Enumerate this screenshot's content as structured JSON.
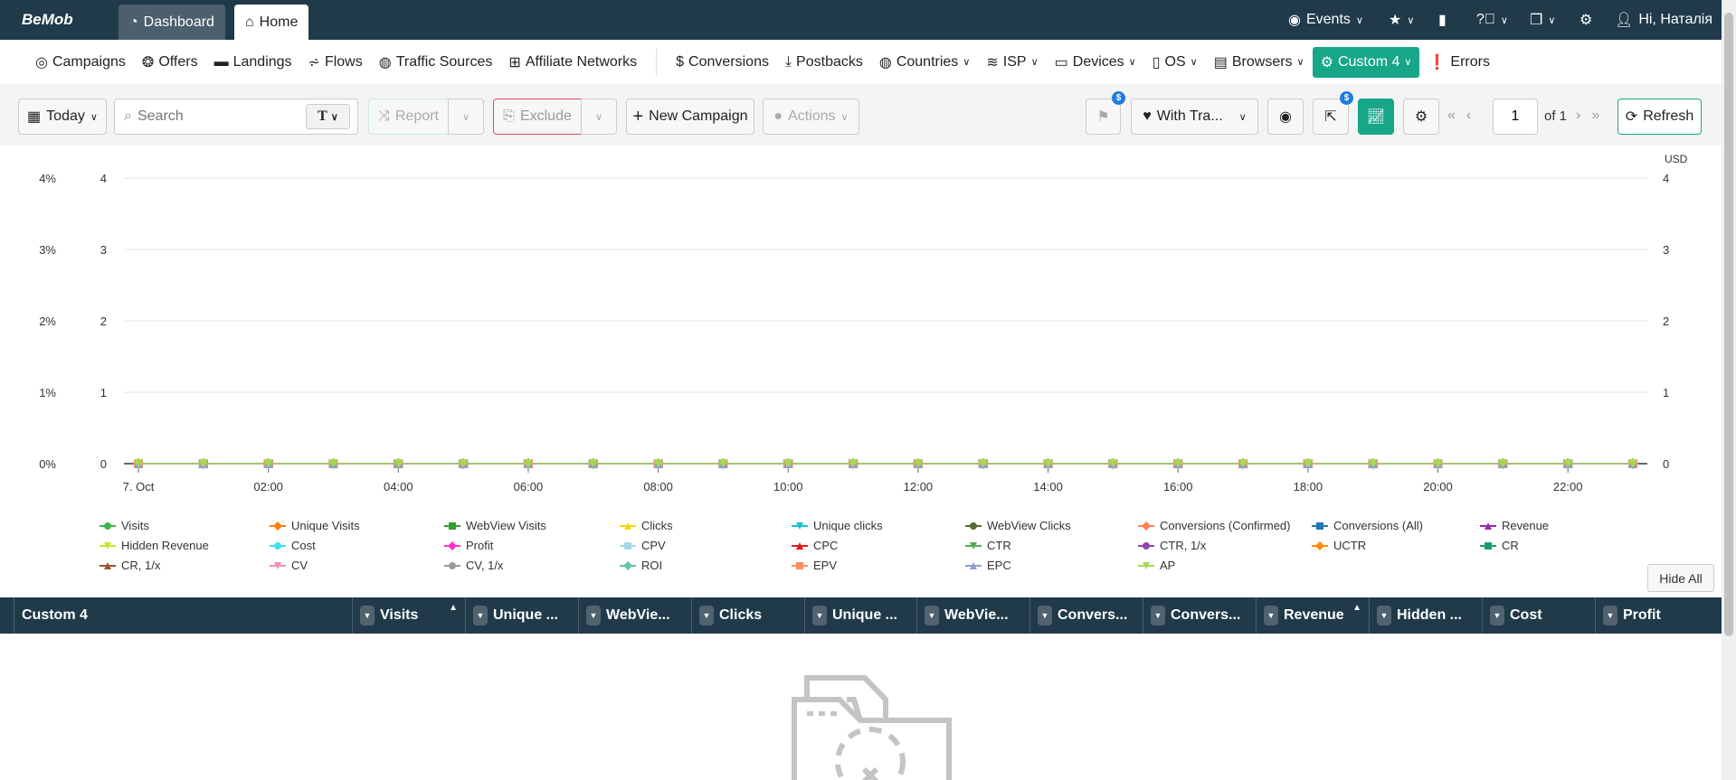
{
  "topbar": {
    "logo": "BeMob",
    "tabs": [
      {
        "label": "Dashboard",
        "icon": "dashboard-icon"
      },
      {
        "label": "Home",
        "icon": "home-icon"
      }
    ],
    "events": "Events",
    "user": "Hi, Наталія"
  },
  "nav": {
    "items": [
      {
        "label": "Campaigns",
        "icon": "target-icon"
      },
      {
        "label": "Offers",
        "icon": "dollar-badge-icon"
      },
      {
        "label": "Landings",
        "icon": "page-icon"
      },
      {
        "label": "Flows",
        "icon": "sitemap-icon"
      },
      {
        "label": "Traffic Sources",
        "icon": "globe-icon"
      },
      {
        "label": "Affiliate Networks",
        "icon": "network-icon"
      },
      {
        "label": "Conversions",
        "icon": "dollar-icon",
        "sep": true
      },
      {
        "label": "Postbacks",
        "icon": "download-icon"
      },
      {
        "label": "Countries",
        "icon": "globe-icon",
        "dropdown": true
      },
      {
        "label": "ISP",
        "icon": "wifi-icon",
        "dropdown": true
      },
      {
        "label": "Devices",
        "icon": "laptop-icon",
        "dropdown": true
      },
      {
        "label": "OS",
        "icon": "mobile-icon",
        "dropdown": true
      },
      {
        "label": "Browsers",
        "icon": "browser-icon",
        "dropdown": true
      },
      {
        "label": "Custom 4",
        "icon": "cogs-icon",
        "dropdown": true,
        "active": true
      },
      {
        "label": "Errors",
        "icon": "exclamation-icon"
      }
    ]
  },
  "toolbar": {
    "date": "Today",
    "search_placeholder": "Search",
    "search_type": "T",
    "report": "Report",
    "exclude": "Exclude",
    "new_campaign": "New Campaign",
    "actions": "Actions",
    "traffic_filter": "With Tra...",
    "badge": "$",
    "page": "1",
    "page_of": "of 1",
    "refresh": "Refresh"
  },
  "chart_data": {
    "type": "line",
    "x": [
      "00:00",
      "01:00",
      "02:00",
      "03:00",
      "04:00",
      "05:00",
      "06:00",
      "07:00",
      "08:00",
      "09:00",
      "10:00",
      "11:00",
      "12:00",
      "13:00",
      "14:00",
      "15:00",
      "16:00",
      "17:00",
      "18:00",
      "19:00",
      "20:00",
      "21:00",
      "22:00",
      "23:00"
    ],
    "x_tick_labels": [
      "7. Oct",
      "02:00",
      "04:00",
      "06:00",
      "08:00",
      "10:00",
      "12:00",
      "14:00",
      "16:00",
      "18:00",
      "20:00",
      "22:00"
    ],
    "y_left_percent_ticks": [
      "0%",
      "1%",
      "2%",
      "3%",
      "4%"
    ],
    "y_left_ticks": [
      "0",
      "1",
      "2",
      "3",
      "4"
    ],
    "y_right_ticks": [
      "0",
      "1",
      "2",
      "3",
      "4"
    ],
    "y_right_label": "USD",
    "ylim": [
      0,
      4
    ],
    "grid": true,
    "legend_placement": "bottom",
    "series": [
      {
        "name": "Visits",
        "color": "#3cb44b",
        "marker": "circle"
      },
      {
        "name": "Unique Visits",
        "color": "#ff7f0e",
        "marker": "diamond"
      },
      {
        "name": "WebView Visits",
        "color": "#2ca02c",
        "marker": "square"
      },
      {
        "name": "Clicks",
        "color": "#f5d90a",
        "marker": "triangle"
      },
      {
        "name": "Unique clicks",
        "color": "#17becf",
        "marker": "triangle-down"
      },
      {
        "name": "WebView Clicks",
        "color": "#556b2f",
        "marker": "circle"
      },
      {
        "name": "Conversions (Confirmed)",
        "color": "#ff7f50",
        "marker": "diamond"
      },
      {
        "name": "Conversions (All)",
        "color": "#1f77b4",
        "marker": "square"
      },
      {
        "name": "Revenue",
        "color": "#9c27b0",
        "marker": "triangle"
      },
      {
        "name": "Hidden Revenue",
        "color": "#c6e82b",
        "marker": "triangle-down"
      },
      {
        "name": "Cost",
        "color": "#40e0f0",
        "marker": "circle"
      },
      {
        "name": "Profit",
        "color": "#ff33cc",
        "marker": "diamond"
      },
      {
        "name": "CPV",
        "color": "#a6d8e8",
        "marker": "square"
      },
      {
        "name": "CPC",
        "color": "#e31a1c",
        "marker": "triangle"
      },
      {
        "name": "CTR",
        "color": "#4caf50",
        "marker": "triangle-down"
      },
      {
        "name": "CTR, 1/x",
        "color": "#8e44ad",
        "marker": "circle"
      },
      {
        "name": "UCTR",
        "color": "#ff8c00",
        "marker": "diamond"
      },
      {
        "name": "CR",
        "color": "#1a9b7a",
        "marker": "square"
      },
      {
        "name": "CR, 1/x",
        "color": "#a0522d",
        "marker": "triangle"
      },
      {
        "name": "CV",
        "color": "#f48fb1",
        "marker": "triangle-down"
      },
      {
        "name": "CV, 1/x",
        "color": "#999999",
        "marker": "circle"
      },
      {
        "name": "ROI",
        "color": "#66c2a5",
        "marker": "diamond"
      },
      {
        "name": "EPV",
        "color": "#fc8d62",
        "marker": "square"
      },
      {
        "name": "EPC",
        "color": "#8da0cb",
        "marker": "triangle"
      },
      {
        "name": "AP",
        "color": "#a6d854",
        "marker": "triangle-down"
      }
    ],
    "values_all_series": [
      0,
      0,
      0,
      0,
      0,
      0,
      0,
      0,
      0,
      0,
      0,
      0,
      0,
      0,
      0,
      0,
      0,
      0,
      0,
      0,
      0,
      0,
      0,
      0
    ]
  },
  "hide_all": "Hide All",
  "table": {
    "columns": [
      {
        "label": "Custom 4"
      },
      {
        "label": "Visits",
        "sort": "asc"
      },
      {
        "label": "Unique ..."
      },
      {
        "label": "WebVie..."
      },
      {
        "label": "Clicks"
      },
      {
        "label": "Unique ..."
      },
      {
        "label": "WebVie..."
      },
      {
        "label": "Convers..."
      },
      {
        "label": "Convers..."
      },
      {
        "label": "Revenue",
        "sort": "asc"
      },
      {
        "label": "Hidden ..."
      },
      {
        "label": "Cost"
      },
      {
        "label": "Profit"
      }
    ]
  },
  "colors": {
    "topbar": "#203a4a",
    "accent": "#18a689",
    "badge": "#1e7be0"
  }
}
